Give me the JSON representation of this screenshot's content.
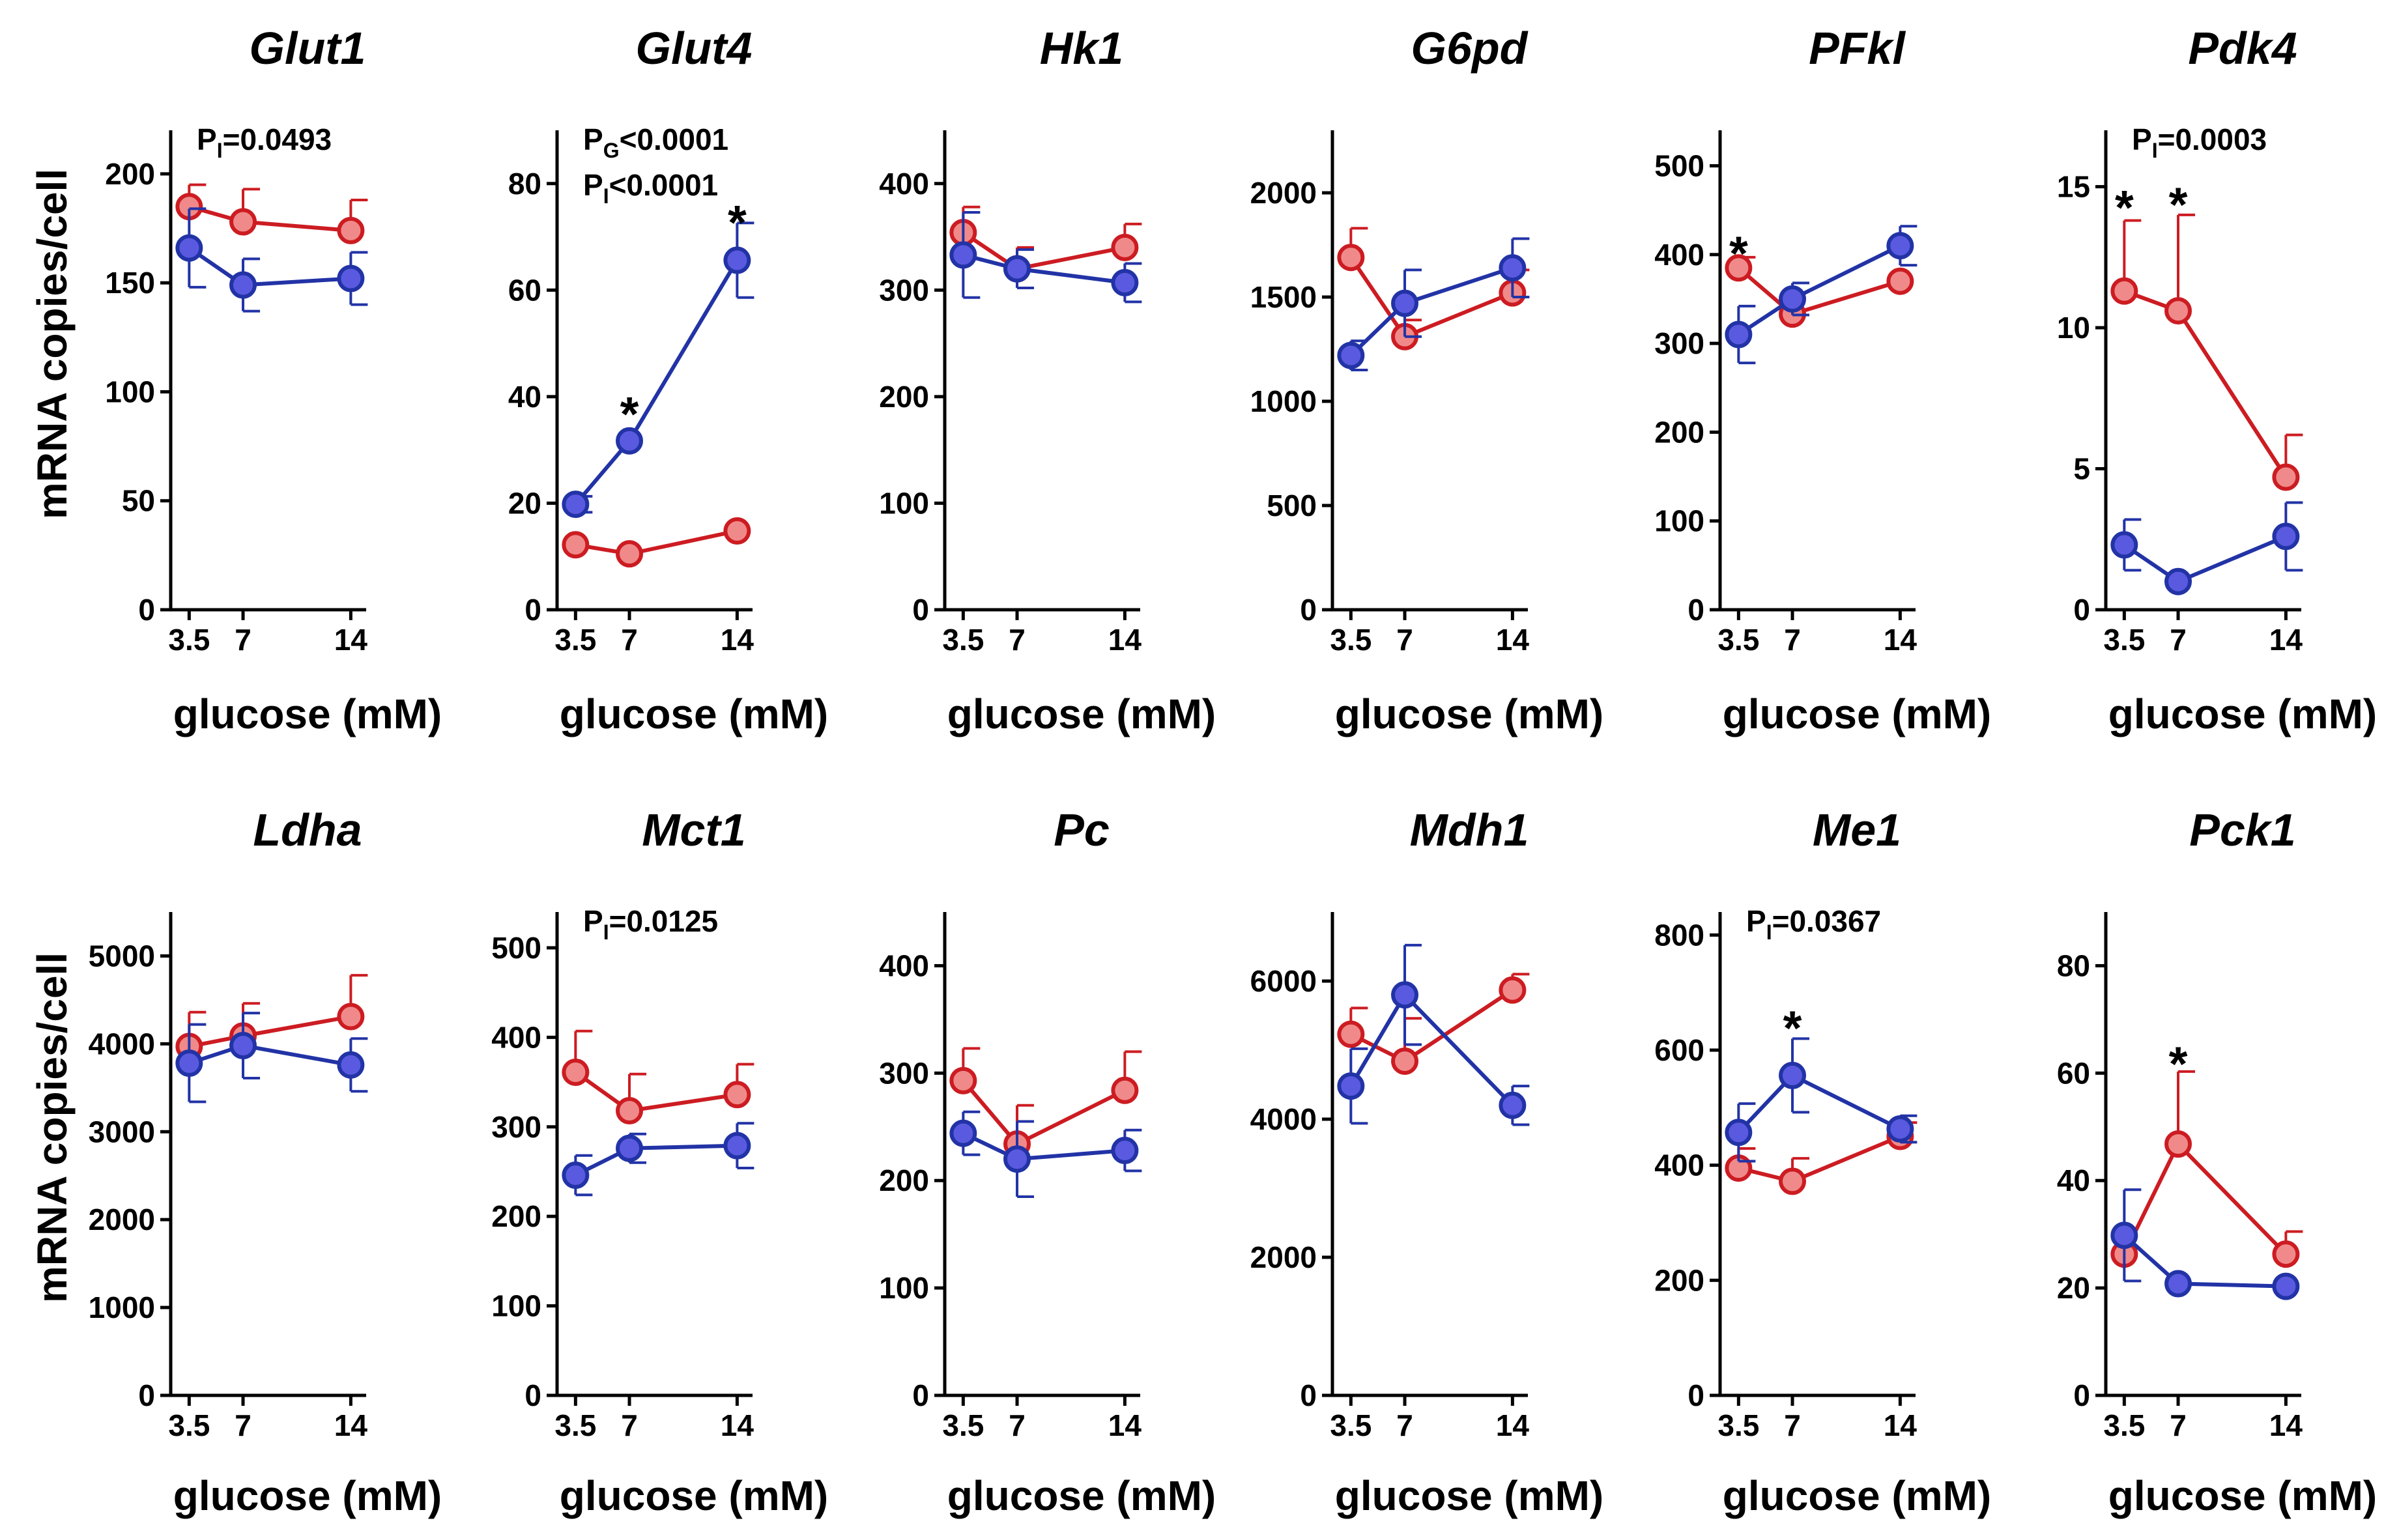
{
  "colors": {
    "blue": "#2233a6",
    "blue_fill": "#5a5ae0",
    "red": "#cc1c22",
    "red_fill": "#f08a8a"
  },
  "chart_data": [
    {
      "type": "line",
      "title": "Glut1",
      "categories": [
        "3.5",
        "7",
        "14"
      ],
      "x": [
        3.5,
        7,
        14
      ],
      "ylim": [
        0,
        220
      ],
      "yticks": [
        0,
        50,
        100,
        150,
        200
      ],
      "xlabel": "glucose (mM)",
      "ylabel": "mRNA copies/cell",
      "series": [
        {
          "name": "red",
          "values": [
            185,
            178,
            174
          ],
          "errors": [
            10,
            15,
            14
          ]
        },
        {
          "name": "blue",
          "values": [
            166,
            149,
            152
          ],
          "errors": [
            18,
            12,
            12
          ]
        }
      ],
      "annotations": [
        {
          "base": "P",
          "sub": "I",
          "rest": "=0.0493"
        }
      ],
      "significance": []
    },
    {
      "type": "line",
      "title": "Glut4",
      "categories": [
        "3.5",
        "7",
        "14"
      ],
      "x": [
        3.5,
        7,
        14
      ],
      "ylim": [
        0,
        90
      ],
      "yticks": [
        0,
        20,
        40,
        60,
        80
      ],
      "xlabel": "glucose (mM)",
      "ylabel": "",
      "series": [
        {
          "name": "red",
          "values": [
            12.2,
            10.5,
            14.8
          ],
          "errors": [
            0,
            0,
            0
          ]
        },
        {
          "name": "blue",
          "values": [
            19.8,
            31.7,
            65.6
          ],
          "errors": [
            1.5,
            0,
            7
          ]
        }
      ],
      "annotations": [
        {
          "base": "P",
          "sub": "G",
          "rest": "<0.0001"
        },
        {
          "base": "P",
          "sub": "I",
          "rest": "<0.0001"
        }
      ],
      "significance": [
        {
          "x": 7,
          "y": 38.5
        },
        {
          "x": 14,
          "y": 74.5
        }
      ]
    },
    {
      "type": "line",
      "title": "Hk1",
      "categories": [
        "3.5",
        "7",
        "14"
      ],
      "x": [
        3.5,
        7,
        14
      ],
      "ylim": [
        0,
        450
      ],
      "yticks": [
        0,
        100,
        200,
        300,
        400
      ],
      "xlabel": "glucose (mM)",
      "ylabel": "",
      "series": [
        {
          "name": "red",
          "values": [
            354,
            320,
            340
          ],
          "errors": [
            24,
            20,
            22
          ]
        },
        {
          "name": "blue",
          "values": [
            333,
            320,
            307
          ],
          "errors": [
            40,
            18,
            18
          ]
        }
      ],
      "annotations": [],
      "significance": []
    },
    {
      "type": "line",
      "title": "G6pd",
      "categories": [
        "3.5",
        "7",
        "14"
      ],
      "x": [
        3.5,
        7,
        14
      ],
      "ylim": [
        0,
        2300
      ],
      "yticks": [
        0,
        500,
        1000,
        1500,
        2000
      ],
      "xlabel": "glucose (mM)",
      "ylabel": "",
      "series": [
        {
          "name": "red",
          "values": [
            1690,
            1310,
            1520
          ],
          "errors": [
            140,
            80,
            110
          ]
        },
        {
          "name": "blue",
          "values": [
            1220,
            1470,
            1640
          ],
          "errors": [
            70,
            160,
            140
          ]
        }
      ],
      "annotations": [],
      "significance": []
    },
    {
      "type": "line",
      "title": "PFkl",
      "categories": [
        "3.5",
        "7",
        "14"
      ],
      "x": [
        3.5,
        7,
        14
      ],
      "ylim": [
        0,
        540
      ],
      "yticks": [
        0,
        100,
        200,
        300,
        400,
        500
      ],
      "xlabel": "glucose (mM)",
      "ylabel": "",
      "series": [
        {
          "name": "red",
          "values": [
            385,
            333,
            370
          ],
          "errors": [
            12,
            0,
            0
          ]
        },
        {
          "name": "blue",
          "values": [
            310,
            350,
            410
          ],
          "errors": [
            32,
            18,
            22
          ]
        }
      ],
      "annotations": [],
      "significance": [
        {
          "x": 3.5,
          "y": 412
        }
      ]
    },
    {
      "type": "line",
      "title": "Pdk4",
      "categories": [
        "3.5",
        "7",
        "14"
      ],
      "x": [
        3.5,
        7,
        14
      ],
      "ylim": [
        0,
        17
      ],
      "yticks": [
        0,
        5,
        10,
        15
      ],
      "xlabel": "glucose (mM)",
      "ylabel": "",
      "series": [
        {
          "name": "red",
          "values": [
            11.3,
            10.6,
            4.7
          ],
          "errors": [
            2.5,
            3.4,
            1.5
          ]
        },
        {
          "name": "blue",
          "values": [
            2.3,
            1.0,
            2.6
          ],
          "errors": [
            0.9,
            0,
            1.2
          ]
        }
      ],
      "annotations": [
        {
          "base": "P",
          "sub": "I",
          "rest": "=0.0003"
        }
      ],
      "significance": [
        {
          "x": 3.5,
          "y": 14.6
        },
        {
          "x": 7,
          "y": 14.7
        }
      ]
    },
    {
      "type": "line",
      "title": "Ldha",
      "categories": [
        "3.5",
        "7",
        "14"
      ],
      "x": [
        3.5,
        7,
        14
      ],
      "ylim": [
        0,
        5500
      ],
      "yticks": [
        0,
        1000,
        2000,
        3000,
        4000,
        5000
      ],
      "xlabel": "glucose (mM)",
      "ylabel": "mRNA copies/cell",
      "series": [
        {
          "name": "red",
          "values": [
            3970,
            4090,
            4310
          ],
          "errors": [
            390,
            370,
            470
          ]
        },
        {
          "name": "blue",
          "values": [
            3780,
            3980,
            3760
          ],
          "errors": [
            440,
            370,
            300
          ]
        }
      ],
      "annotations": [],
      "significance": []
    },
    {
      "type": "line",
      "title": "Mct1",
      "categories": [
        "3.5",
        "7",
        "14"
      ],
      "x": [
        3.5,
        7,
        14
      ],
      "ylim": [
        0,
        540
      ],
      "yticks": [
        0,
        100,
        200,
        300,
        400,
        500
      ],
      "xlabel": "glucose (mM)",
      "ylabel": "",
      "series": [
        {
          "name": "red",
          "values": [
            361,
            318,
            336
          ],
          "errors": [
            46,
            41,
            34
          ]
        },
        {
          "name": "blue",
          "values": [
            246,
            276,
            279
          ],
          "errors": [
            22,
            16,
            25
          ]
        }
      ],
      "annotations": [
        {
          "base": "P",
          "sub": "I",
          "rest": "=0.0125"
        }
      ],
      "significance": []
    },
    {
      "type": "line",
      "title": "Pc",
      "categories": [
        "3.5",
        "7",
        "14"
      ],
      "x": [
        3.5,
        7,
        14
      ],
      "ylim": [
        0,
        450
      ],
      "yticks": [
        0,
        100,
        200,
        300,
        400
      ],
      "xlabel": "glucose (mM)",
      "ylabel": "",
      "series": [
        {
          "name": "red",
          "values": [
            293,
            234,
            284
          ],
          "errors": [
            30,
            36,
            36
          ]
        },
        {
          "name": "blue",
          "values": [
            244,
            220,
            228
          ],
          "errors": [
            20,
            35,
            19
          ]
        }
      ],
      "annotations": [],
      "significance": []
    },
    {
      "type": "line",
      "title": "Mdh1",
      "categories": [
        "3.5",
        "7",
        "14"
      ],
      "x": [
        3.5,
        7,
        14
      ],
      "ylim": [
        0,
        7000
      ],
      "yticks": [
        0,
        2000,
        4000,
        6000
      ],
      "xlabel": "glucose (mM)",
      "ylabel": "",
      "series": [
        {
          "name": "red",
          "values": [
            5230,
            4840,
            5870
          ],
          "errors": [
            380,
            620,
            230
          ]
        },
        {
          "name": "blue",
          "values": [
            4480,
            5800,
            4200
          ],
          "errors": [
            540,
            720,
            280
          ]
        }
      ],
      "annotations": [],
      "significance": []
    },
    {
      "type": "line",
      "title": "Me1",
      "categories": [
        "3.5",
        "7",
        "14"
      ],
      "x": [
        3.5,
        7,
        14
      ],
      "ylim": [
        0,
        840
      ],
      "yticks": [
        0,
        200,
        400,
        600,
        800
      ],
      "xlabel": "glucose (mM)",
      "ylabel": "",
      "series": [
        {
          "name": "red",
          "values": [
            395,
            372,
            450
          ],
          "errors": [
            34,
            40,
            24
          ]
        },
        {
          "name": "blue",
          "values": [
            457,
            556,
            463
          ],
          "errors": [
            50,
            64,
            23
          ]
        }
      ],
      "annotations": [
        {
          "base": "P",
          "sub": "I",
          "rest": "=0.0367"
        }
      ],
      "significance": [
        {
          "x": 7,
          "y": 655
        }
      ]
    },
    {
      "type": "line",
      "title": "Pck1",
      "categories": [
        "3.5",
        "7",
        "14"
      ],
      "x": [
        3.5,
        7,
        14
      ],
      "ylim": [
        0,
        90
      ],
      "yticks": [
        0,
        20,
        40,
        60,
        80
      ],
      "xlabel": "glucose (mM)",
      "ylabel": "",
      "series": [
        {
          "name": "red",
          "values": [
            26.3,
            46.8,
            26.3
          ],
          "errors": [
            0,
            13.5,
            4.2
          ]
        },
        {
          "name": "blue",
          "values": [
            29.8,
            20.8,
            20.3
          ],
          "errors": [
            8.5,
            0,
            0
          ]
        }
      ],
      "annotations": [],
      "significance": [
        {
          "x": 7,
          "y": 63.5
        }
      ]
    }
  ]
}
